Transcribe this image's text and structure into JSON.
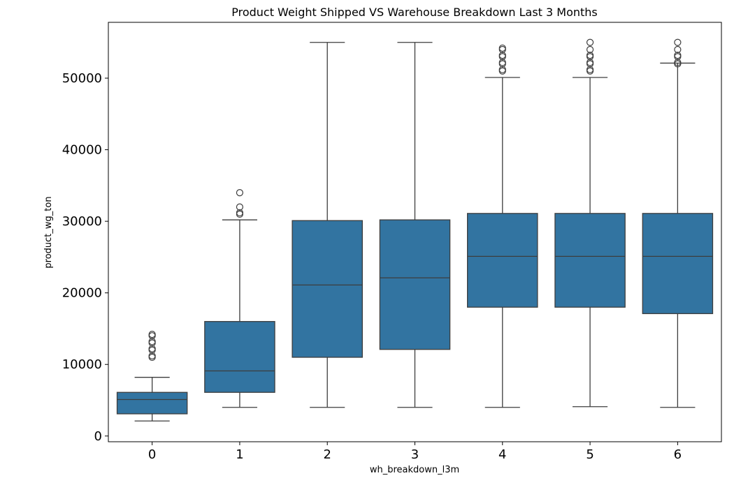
{
  "chart_data": {
    "type": "box",
    "title": "Product Weight Shipped VS Warehouse Breakdown Last 3 Months",
    "xlabel": "wh_breakdown_l3m",
    "ylabel": "product_wg_ton",
    "categories": [
      "0",
      "1",
      "2",
      "3",
      "4",
      "5",
      "6"
    ],
    "ylim": [
      -800,
      57800
    ],
    "yticks": [
      0,
      10000,
      20000,
      30000,
      40000,
      50000
    ],
    "yticklabels": [
      "0",
      "10000",
      "20000",
      "30000",
      "40000",
      "50000"
    ],
    "grid": false,
    "legend": "none",
    "box_color": "#3274a1",
    "line_color": "#3d3d3d",
    "boxes": [
      {
        "category": "0",
        "whisker_low": 2100,
        "q1": 3100,
        "median": 5100,
        "q3": 6100,
        "whisker_high": 8200,
        "outliers": [
          11000,
          11200,
          12000,
          12200,
          13000,
          13200,
          14000,
          14200
        ]
      },
      {
        "category": "1",
        "whisker_low": 4000,
        "q1": 6100,
        "median": 9100,
        "q3": 16000,
        "whisker_high": 30200,
        "outliers": [
          31000,
          31200,
          32000,
          34000
        ]
      },
      {
        "category": "2",
        "whisker_low": 4000,
        "q1": 11000,
        "median": 21100,
        "q3": 30100,
        "whisker_high": 55000,
        "outliers": []
      },
      {
        "category": "3",
        "whisker_low": 4000,
        "q1": 12100,
        "median": 22100,
        "q3": 30200,
        "whisker_high": 55000,
        "outliers": []
      },
      {
        "category": "4",
        "whisker_low": 4000,
        "q1": 18000,
        "median": 25100,
        "q3": 31100,
        "whisker_high": 50100,
        "outliers": [
          51000,
          51200,
          52000,
          52200,
          53000,
          53200,
          54000,
          54200
        ]
      },
      {
        "category": "5",
        "whisker_low": 4100,
        "q1": 18000,
        "median": 25100,
        "q3": 31100,
        "whisker_high": 50100,
        "outliers": [
          51000,
          51200,
          52000,
          52200,
          53000,
          53200,
          54000,
          55000
        ]
      },
      {
        "category": "6",
        "whisker_low": 4000,
        "q1": 17100,
        "median": 25100,
        "q3": 31100,
        "whisker_high": 52100,
        "outliers": [
          52000,
          52200,
          53000,
          53200,
          54000,
          55000
        ]
      }
    ]
  }
}
